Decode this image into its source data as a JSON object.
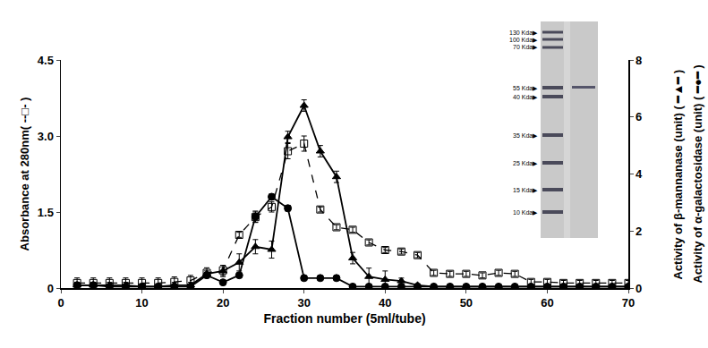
{
  "chart_data": {
    "type": "line",
    "xlabel": "Fraction number (5ml/tube)",
    "ylabel": "Absorbance at 280nm( --□- )",
    "y2label": [
      "Activity of β-mannanase (unit) ( ━▲━ )",
      "Activity of α-galactosidase (unit) ( ━●━ )"
    ],
    "xlim": [
      0,
      70
    ],
    "xticks": [
      0,
      10,
      20,
      30,
      40,
      50,
      60,
      70
    ],
    "ylim": [
      0,
      4.5
    ],
    "yticks": [
      0,
      1.5,
      {
        "value": 3,
        "label": "3.0"
      },
      4.5
    ],
    "y2lim": [
      0,
      8
    ],
    "y2ticks": [
      0,
      2,
      4,
      6,
      8
    ],
    "x": [
      2,
      4,
      6,
      8,
      10,
      12,
      14,
      16,
      18,
      20,
      22,
      24,
      26,
      28,
      30,
      32,
      34,
      36,
      38,
      40,
      42,
      44,
      46,
      48,
      50,
      52,
      54,
      56,
      58,
      60,
      62,
      64,
      66,
      68,
      70
    ],
    "series": [
      {
        "color": "#000000",
        "marker": "square-open",
        "line_style": "dashed",
        "values": [
          0.1,
          0.1,
          0.1,
          0.1,
          0.1,
          0.1,
          0.12,
          0.15,
          0.3,
          0.35,
          1.05,
          1.4,
          1.6,
          2.7,
          2.85,
          1.55,
          1.2,
          1.15,
          0.9,
          0.75,
          0.72,
          0.65,
          0.3,
          0.28,
          0.28,
          0.25,
          0.3,
          0.28,
          0.12,
          0.12,
          0.1,
          0.1,
          0.1,
          0.1,
          0.1
        ],
        "error": [
          0.1,
          0.1,
          0.1,
          0.1,
          0.1,
          0.1,
          0.1,
          0.1,
          0.1,
          0.1,
          0.05,
          0.1,
          0.1,
          0.15,
          0.15,
          0.05,
          0.05,
          0.05,
          0.05,
          0.05,
          0.05,
          0.05,
          0.05,
          0.05,
          0.05,
          0.05,
          0.05,
          0.05,
          0.05,
          0.05,
          0.05,
          0.05,
          0.05,
          0.05,
          0.05
        ]
      },
      {
        "color": "#000000",
        "marker": "triangle",
        "line_style": "solid",
        "axis": "y2",
        "values": [
          0.1,
          0.1,
          0.1,
          0.1,
          0.05,
          0.05,
          0.1,
          0.1,
          0.5,
          0.6,
          0.9,
          1.45,
          1.35,
          5.3,
          6.4,
          4.8,
          3.9,
          1.05,
          0.4,
          0.3,
          0.25,
          0.1,
          0.05,
          0.05,
          0.05,
          0.05,
          0.05,
          0.05,
          0.05,
          0.05,
          0.05,
          0.05,
          0.05,
          0.05,
          0.05
        ],
        "error": [
          0.1,
          0.1,
          0.1,
          0.1,
          0.1,
          0.1,
          0.1,
          0.1,
          0.1,
          0.2,
          0.3,
          0.25,
          0.3,
          0.2,
          0.2,
          0.2,
          0.2,
          0.2,
          0.3,
          0.3,
          0.1,
          0.05,
          0.05,
          0.05,
          0.05,
          0.05,
          0.05,
          0.05,
          0.05,
          0.05,
          0.05,
          0.05,
          0.05,
          0.05,
          0.05
        ]
      },
      {
        "color": "#000000",
        "marker": "circle",
        "line_style": "solid",
        "axis": "y2",
        "values": [
          0.1,
          0.1,
          0.05,
          0.05,
          0.05,
          0.05,
          0.05,
          0.05,
          0.45,
          0.2,
          0.45,
          2.5,
          3.2,
          2.8,
          0.35,
          0.35,
          0.35,
          0.05,
          0.05,
          0.05,
          0.05,
          0.05,
          0.05,
          0.05,
          0.05,
          0.05,
          0.05,
          0.05,
          0.05,
          0.05,
          0.05,
          0.05,
          0.05,
          0.05,
          0.05
        ],
        "error": [
          0.05,
          0.05,
          0.05,
          0.05,
          0.05,
          0.05,
          0.05,
          0.05,
          0.05,
          0.05,
          0.05,
          0.2,
          0.1,
          0.1,
          0.05,
          0.05,
          0.05,
          0.05,
          0.05,
          0.05,
          0.05,
          0.05,
          0.05,
          0.05,
          0.05,
          0.05,
          0.05,
          0.05,
          0.05,
          0.05,
          0.05,
          0.05,
          0.05,
          0.05,
          0.05
        ]
      }
    ],
    "annotations": [
      "130 Kda▶",
      "100 Kda▶",
      "70 Kda▶",
      "55 Kda▶",
      "40 Kda▶",
      "35 Kda▶",
      "25 Kda▶",
      "15 Kda▶",
      "10 Kda▶"
    ]
  }
}
